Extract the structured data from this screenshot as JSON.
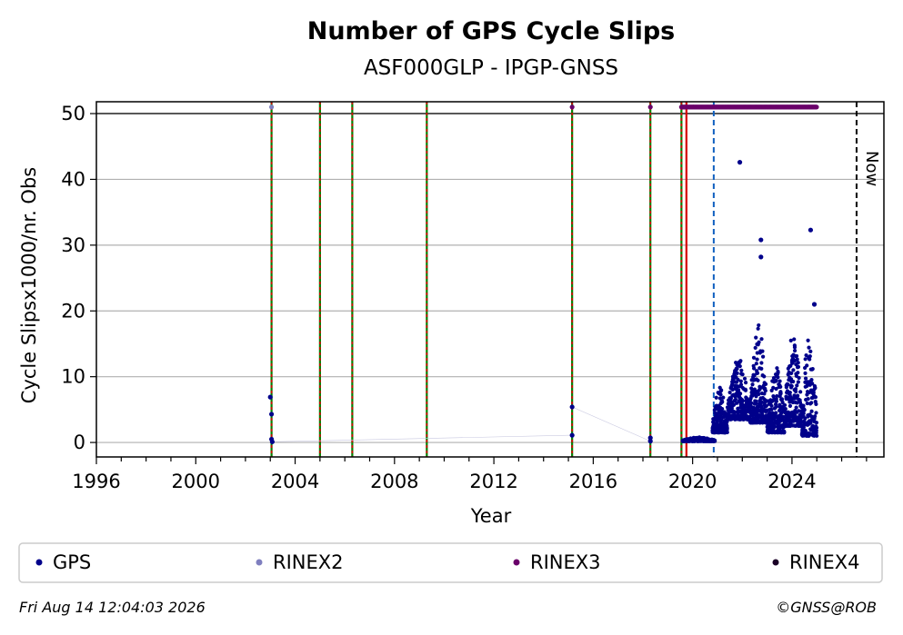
{
  "chart_data": {
    "type": "scatter",
    "title": "Number of GPS Cycle Slips",
    "subtitle": "ASF000GLP - IPGP-GNSS",
    "xlabel": "Year",
    "ylabel": "Cycle Slipsx1000/nr. Obs",
    "xlim": [
      1996,
      2027.7
    ],
    "ylim": [
      -2.2,
      51.8
    ],
    "x_ticks": [
      1996,
      2000,
      2004,
      2008,
      2012,
      2016,
      2020,
      2024
    ],
    "y_ticks": [
      0,
      10,
      20,
      30,
      40,
      50
    ],
    "x_tick_labels": [
      "1996",
      "2000",
      "2004",
      "2008",
      "2012",
      "2016",
      "2020",
      "2024"
    ],
    "y_tick_labels": [
      "0",
      "10",
      "20",
      "30",
      "40",
      "50"
    ],
    "grid": "horizontal",
    "legend_position": "bottom",
    "colors": {
      "GPS": "#00008b",
      "RINEX2": "#7f7fbf",
      "RINEX3": "#6a006a",
      "RINEX4": "#1a0026"
    },
    "reference_line_y": 50,
    "green_event_lines_x": [
      2003.05,
      2005.0,
      2006.3,
      2009.3,
      2015.15,
      2018.3,
      2019.55
    ],
    "red_event_lines_x": [
      2003.05,
      2005.0,
      2006.3,
      2009.3,
      2015.15,
      2018.3,
      2019.55,
      2019.75
    ],
    "blue_dashed_line_x": 2020.85,
    "now_line_x": 2026.6,
    "now_label": "Now",
    "series": [
      {
        "name": "GPS",
        "kind": "points",
        "points": [
          [
            2003.0,
            6.9
          ],
          [
            2003.05,
            4.3
          ],
          [
            2003.05,
            0.5
          ],
          [
            2003.08,
            0.1
          ],
          [
            2015.15,
            5.4
          ],
          [
            2015.15,
            1.1
          ],
          [
            2018.3,
            0.7
          ],
          [
            2018.3,
            0.2
          ],
          [
            2021.9,
            42.6
          ],
          [
            2022.75,
            30.8
          ],
          [
            2022.75,
            28.2
          ],
          [
            2024.75,
            32.3
          ],
          [
            2024.9,
            21.0
          ]
        ],
        "segments": [
          {
            "x_start": 2019.6,
            "x_end": 2020.9,
            "base": 0.2,
            "amp": 0.6
          },
          {
            "x_start": 2020.8,
            "x_end": 2021.4,
            "base": 1.5,
            "amp": 7.0
          },
          {
            "x_start": 2021.4,
            "x_end": 2022.3,
            "base": 3.5,
            "amp": 9.5
          },
          {
            "x_start": 2022.3,
            "x_end": 2023.0,
            "base": 3.0,
            "amp": 15.0
          },
          {
            "x_start": 2023.0,
            "x_end": 2023.7,
            "base": 1.5,
            "amp": 10.0
          },
          {
            "x_start": 2023.7,
            "x_end": 2024.4,
            "base": 2.5,
            "amp": 14.0
          },
          {
            "x_start": 2024.4,
            "x_end": 2025.0,
            "base": 1.0,
            "amp": 16.0
          }
        ]
      },
      {
        "name": "RINEX2",
        "kind": "points",
        "points": [
          [
            2003.05,
            51.0
          ]
        ]
      },
      {
        "name": "RINEX3",
        "kind": "points_and_band",
        "points": [
          [
            2015.15,
            51.0
          ],
          [
            2018.3,
            51.0
          ]
        ],
        "band": {
          "x_start": 2019.55,
          "x_end": 2025.0,
          "y": 51.0
        }
      },
      {
        "name": "RINEX4",
        "kind": "points",
        "points": []
      }
    ]
  },
  "legend": [
    {
      "label": "GPS",
      "color": "#00008b"
    },
    {
      "label": "RINEX2",
      "color": "#7f7fbf"
    },
    {
      "label": "RINEX3",
      "color": "#6a006a"
    },
    {
      "label": "RINEX4",
      "color": "#1a0026"
    }
  ],
  "footer": {
    "timestamp": "Fri Aug 14 12:04:03 2026",
    "copyright": "©GNSS@ROB"
  }
}
